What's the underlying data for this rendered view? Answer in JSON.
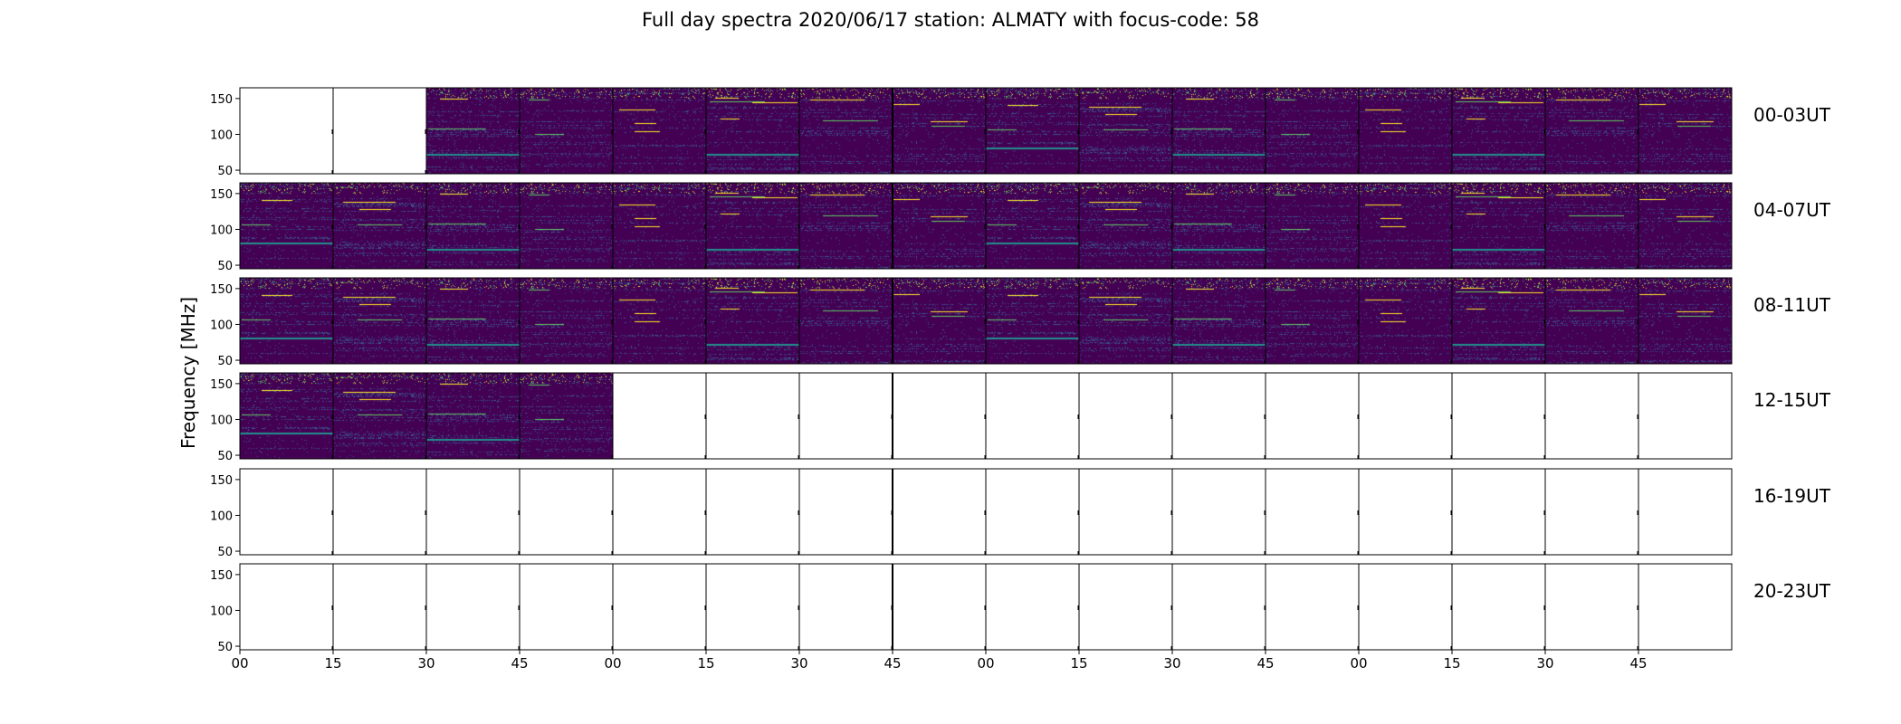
{
  "chart_data": {
    "type": "heatmap",
    "title": "Full day spectra 2020/06/17 station: ALMATY with focus-code: 58",
    "ylabel": "Frequency [MHz]",
    "xlabel": "",
    "ylim": [
      45,
      165
    ],
    "yticks": [
      50,
      100,
      150
    ],
    "xtick_labels": [
      "00",
      "15",
      "30",
      "45",
      "00",
      "15",
      "30",
      "45",
      "00",
      "15",
      "30",
      "45",
      "00",
      "15",
      "30",
      "45"
    ],
    "columns_per_row": 16,
    "minutes_per_column": 15,
    "colormap": [
      "#440154",
      "#3b528b",
      "#21918c",
      "#5ec962",
      "#fde725"
    ],
    "grid": false,
    "rows": [
      {
        "label": "00-03UT",
        "data_present": [
          0,
          0,
          1,
          1,
          1,
          1,
          1,
          1,
          1,
          1,
          1,
          1,
          1,
          1,
          1,
          1
        ]
      },
      {
        "label": "04-07UT",
        "data_present": [
          1,
          1,
          1,
          1,
          1,
          1,
          1,
          1,
          1,
          1,
          1,
          1,
          1,
          1,
          1,
          1
        ]
      },
      {
        "label": "08-11UT",
        "data_present": [
          1,
          1,
          1,
          1,
          1,
          1,
          1,
          1,
          1,
          1,
          1,
          1,
          1,
          1,
          1,
          1
        ]
      },
      {
        "label": "12-15UT",
        "data_present": [
          1,
          1,
          1,
          1,
          0,
          0,
          0,
          0,
          0,
          0,
          0,
          0,
          0,
          0,
          0,
          0
        ]
      },
      {
        "label": "16-19UT",
        "data_present": [
          0,
          0,
          0,
          0,
          0,
          0,
          0,
          0,
          0,
          0,
          0,
          0,
          0,
          0,
          0,
          0
        ]
      },
      {
        "label": "20-23UT",
        "data_present": [
          0,
          0,
          0,
          0,
          0,
          0,
          0,
          0,
          0,
          0,
          0,
          0,
          0,
          0,
          0,
          0
        ]
      }
    ]
  }
}
